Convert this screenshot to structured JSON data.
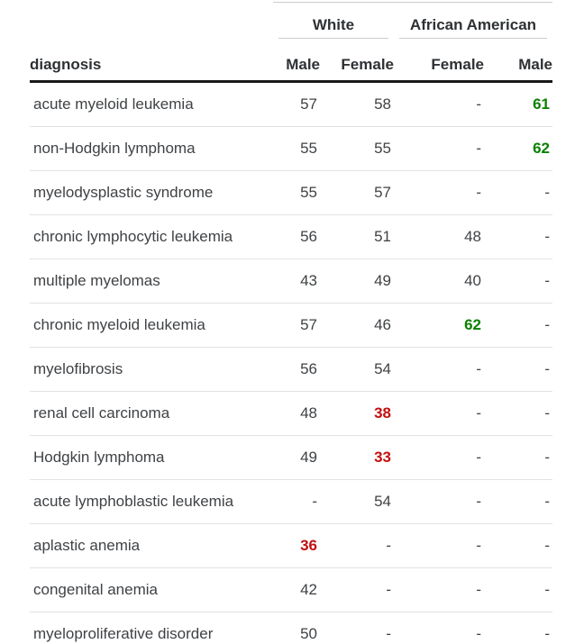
{
  "chart_data": {
    "type": "table",
    "row_header": "diagnosis",
    "column_groups": [
      {
        "label": "White",
        "columns": [
          "Male",
          "Female"
        ]
      },
      {
        "label": "African American",
        "columns": [
          "Female",
          "Male"
        ]
      }
    ],
    "columns": [
      "Male",
      "Female",
      "Female",
      "Male"
    ],
    "rows": [
      {
        "diagnosis": "acute myeloid leukemia",
        "values": [
          "57",
          "58",
          "-",
          "61"
        ],
        "highlights": [
          null,
          null,
          null,
          "green"
        ]
      },
      {
        "diagnosis": "non-Hodgkin lymphoma",
        "values": [
          "55",
          "55",
          "-",
          "62"
        ],
        "highlights": [
          null,
          null,
          null,
          "green"
        ]
      },
      {
        "diagnosis": "myelodysplastic syndrome",
        "values": [
          "55",
          "57",
          "-",
          "-"
        ],
        "highlights": [
          null,
          null,
          null,
          null
        ]
      },
      {
        "diagnosis": "chronic lymphocytic leukemia",
        "values": [
          "56",
          "51",
          "48",
          "-"
        ],
        "highlights": [
          null,
          null,
          null,
          null
        ]
      },
      {
        "diagnosis": "multiple myelomas",
        "values": [
          "43",
          "49",
          "40",
          "-"
        ],
        "highlights": [
          null,
          null,
          null,
          null
        ]
      },
      {
        "diagnosis": "chronic myeloid leukemia",
        "values": [
          "57",
          "46",
          "62",
          "-"
        ],
        "highlights": [
          null,
          null,
          "green",
          null
        ]
      },
      {
        "diagnosis": "myelofibrosis",
        "values": [
          "56",
          "54",
          "-",
          "-"
        ],
        "highlights": [
          null,
          null,
          null,
          null
        ]
      },
      {
        "diagnosis": "renal cell carcinoma",
        "values": [
          "48",
          "38",
          "-",
          "-"
        ],
        "highlights": [
          null,
          "red",
          null,
          null
        ]
      },
      {
        "diagnosis": "Hodgkin lymphoma",
        "values": [
          "49",
          "33",
          "-",
          "-"
        ],
        "highlights": [
          null,
          "red",
          null,
          null
        ]
      },
      {
        "diagnosis": "acute lymphoblastic leukemia",
        "values": [
          "-",
          "54",
          "-",
          "-"
        ],
        "highlights": [
          null,
          null,
          null,
          null
        ]
      },
      {
        "diagnosis": "aplastic anemia",
        "values": [
          "36",
          "-",
          "-",
          "-"
        ],
        "highlights": [
          "red",
          null,
          null,
          null
        ]
      },
      {
        "diagnosis": "congenital anemia",
        "values": [
          "42",
          "-",
          "-",
          "-"
        ],
        "highlights": [
          null,
          null,
          null,
          null
        ]
      },
      {
        "diagnosis": "myeloproliferative disorder",
        "values": [
          "50",
          "-",
          "-",
          "-"
        ],
        "highlights": [
          null,
          null,
          null,
          null
        ]
      }
    ],
    "highlight_colors": {
      "green": "#0a8000",
      "red": "#c2100f"
    }
  },
  "colors": {
    "highlight_green": "#0a8000",
    "highlight_red": "#c2100f",
    "text": "#3f4245",
    "header_text": "#2e3134",
    "divider": "#e2e2e2",
    "group_underline": "#cccccc",
    "header_rule": "#191919",
    "bottom_rule": "#a9a9a9"
  }
}
